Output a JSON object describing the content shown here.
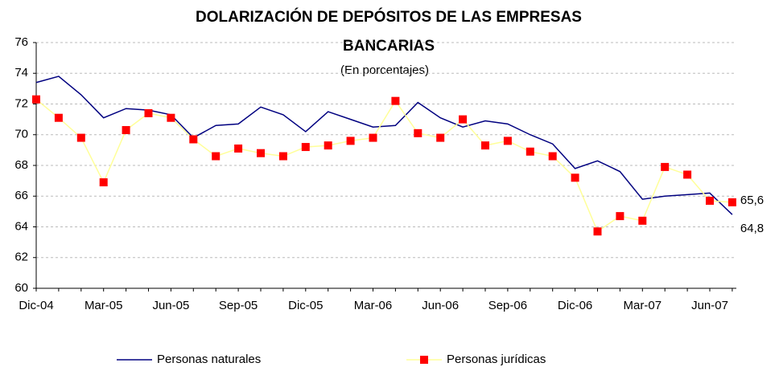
{
  "chart_data": {
    "type": "line",
    "title_lines": [
      "DOLARIZACIÓN DE DEPÓSITOS DE LAS EMPRESAS",
      "BANCARIAS"
    ],
    "subtitle": "(En porcentajes)",
    "categories": [
      "Dic-04",
      null,
      null,
      "Mar-05",
      null,
      null,
      "Jun-05",
      null,
      null,
      "Sep-05",
      null,
      null,
      "Dic-05",
      null,
      null,
      "Mar-06",
      null,
      null,
      "Jun-06",
      null,
      null,
      "Sep-06",
      null,
      null,
      "Dic-06",
      null,
      null,
      "Mar-07",
      null,
      null,
      "Jun-07",
      null
    ],
    "series": [
      {
        "name": "Personas naturales",
        "color": "#000080",
        "marker": "none",
        "values": [
          73.4,
          73.8,
          72.6,
          71.1,
          71.7,
          71.6,
          71.3,
          69.8,
          70.6,
          70.7,
          71.8,
          71.3,
          70.2,
          71.5,
          71.0,
          70.5,
          70.6,
          72.1,
          71.1,
          70.5,
          70.9,
          70.7,
          70.0,
          69.4,
          67.8,
          68.3,
          67.6,
          65.8,
          66.0,
          66.1,
          66.2,
          64.8
        ],
        "value_labels": [
          null,
          null,
          null,
          null,
          null,
          null,
          null,
          null,
          null,
          null,
          null,
          null,
          null,
          null,
          null,
          null,
          null,
          null,
          null,
          null,
          null,
          null,
          null,
          null,
          null,
          null,
          null,
          null,
          null,
          null,
          null,
          "64,8"
        ]
      },
      {
        "name": "Personas jurídicas",
        "color": "#ffff99",
        "marker_color": "#ff0000",
        "marker": "square",
        "values": [
          72.3,
          71.1,
          69.8,
          66.9,
          70.3,
          71.4,
          71.1,
          69.7,
          68.6,
          69.1,
          68.8,
          68.6,
          69.2,
          69.3,
          69.6,
          69.8,
          72.2,
          70.1,
          69.8,
          71.0,
          69.3,
          69.6,
          68.9,
          68.6,
          67.2,
          63.7,
          64.7,
          64.4,
          67.9,
          67.4,
          65.7,
          65.6
        ],
        "value_labels": [
          null,
          null,
          null,
          null,
          null,
          null,
          null,
          null,
          null,
          null,
          null,
          null,
          null,
          null,
          null,
          null,
          null,
          null,
          null,
          null,
          null,
          null,
          null,
          null,
          null,
          null,
          null,
          null,
          null,
          null,
          null,
          "65,6"
        ]
      }
    ],
    "ylim": [
      60,
      76
    ],
    "yticks": [
      60,
      62,
      64,
      66,
      68,
      70,
      72,
      74,
      76
    ],
    "grid": true,
    "legend": "bottom"
  }
}
